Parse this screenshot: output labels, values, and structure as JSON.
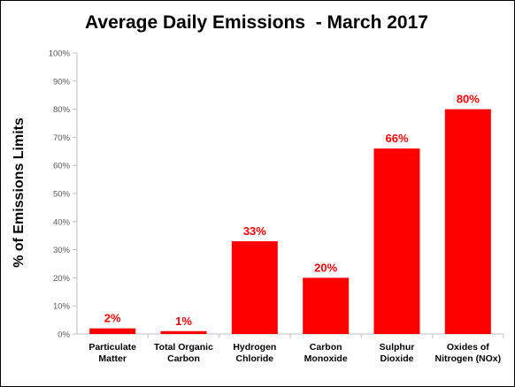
{
  "chart_data": {
    "type": "bar",
    "title": "Average Daily Emissions  - March 2017",
    "ylabel": "% of Emissions Limits",
    "xlabel": "",
    "categories": [
      [
        "Particulate",
        "Matter"
      ],
      [
        "Total Organic",
        "Carbon"
      ],
      [
        "Hydrogen",
        "Chloride"
      ],
      [
        "Carbon",
        "Monoxide"
      ],
      [
        "Sulphur",
        "Dioxide"
      ],
      [
        "Oxides of",
        "Nitrogen (NOx)"
      ]
    ],
    "values": [
      2,
      1,
      33,
      20,
      66,
      80
    ],
    "data_labels": [
      "2%",
      "1%",
      "33%",
      "20%",
      "66%",
      "80%"
    ],
    "ylim": [
      0,
      100
    ],
    "yticks": [
      0,
      10,
      20,
      30,
      40,
      50,
      60,
      70,
      80,
      90,
      100
    ],
    "ytick_labels": [
      "0%",
      "10%",
      "20%",
      "30%",
      "40%",
      "50%",
      "60%",
      "70%",
      "80%",
      "90%",
      "100%"
    ],
    "grid": false,
    "legend": "none",
    "bar_color": "#ff0000",
    "label_color": "#ff0000",
    "axis_color": "#bfbfbf"
  }
}
